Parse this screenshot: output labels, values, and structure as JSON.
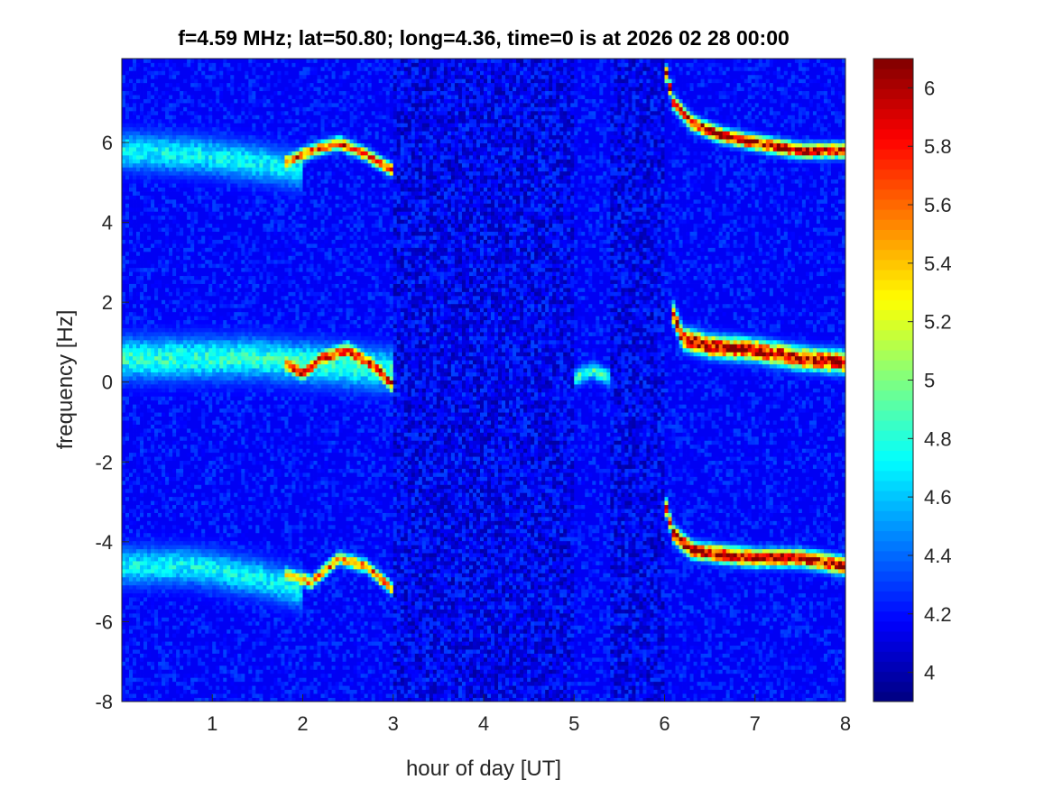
{
  "chart_data": {
    "type": "heatmap",
    "title": "f=4.59 MHz;  lat=50.80; long=4.36, time=0 is at 2026 02 28 00:00",
    "xlabel": "hour of day [UT]",
    "ylabel": "frequency [Hz]",
    "xlim": [
      0,
      8
    ],
    "ylim": [
      -8,
      8.1
    ],
    "xticks": [
      1,
      2,
      3,
      4,
      5,
      6,
      7,
      8
    ],
    "yticks": [
      -8,
      -6,
      -4,
      -2,
      0,
      2,
      4,
      6
    ],
    "colorbar": {
      "clim": [
        3.9,
        6.1
      ],
      "ticks": [
        4,
        4.2,
        4.4,
        4.6,
        4.8,
        5,
        5.2,
        5.4,
        5.6,
        5.8,
        6
      ],
      "colormap": "jet",
      "placement": "right"
    },
    "background_level": 4.15,
    "features": [
      {
        "name": "broad band upper",
        "peak": 4.75,
        "width_hz": 0.45,
        "points": [
          [
            0,
            5.8
          ],
          [
            0.8,
            5.7
          ],
          [
            1.5,
            5.5
          ],
          [
            2.0,
            5.3
          ]
        ]
      },
      {
        "name": "broad band center",
        "peak": 4.85,
        "width_hz": 0.5,
        "points": [
          [
            0,
            0.6
          ],
          [
            0.8,
            0.6
          ],
          [
            1.5,
            0.6
          ],
          [
            2.0,
            0.5
          ],
          [
            3.0,
            0.3
          ]
        ]
      },
      {
        "name": "broad band lower",
        "peak": 4.75,
        "width_hz": 0.45,
        "points": [
          [
            0,
            -4.6
          ],
          [
            0.8,
            -4.6
          ],
          [
            1.5,
            -4.9
          ],
          [
            2.0,
            -5.2
          ]
        ]
      },
      {
        "name": "ridge upper early",
        "peak": 5.8,
        "width_hz": 0.15,
        "points": [
          [
            1.8,
            5.5
          ],
          [
            2.1,
            5.8
          ],
          [
            2.4,
            6.0
          ],
          [
            2.7,
            5.7
          ],
          [
            3.0,
            5.3
          ]
        ]
      },
      {
        "name": "ridge center early",
        "peak": 5.9,
        "width_hz": 0.18,
        "points": [
          [
            1.8,
            0.5
          ],
          [
            2.0,
            0.2
          ],
          [
            2.2,
            0.6
          ],
          [
            2.5,
            0.8
          ],
          [
            2.8,
            0.4
          ],
          [
            3.0,
            -0.1
          ]
        ]
      },
      {
        "name": "ridge lower early",
        "peak": 5.7,
        "width_hz": 0.15,
        "points": [
          [
            1.8,
            -4.8
          ],
          [
            2.1,
            -5.0
          ],
          [
            2.4,
            -4.4
          ],
          [
            2.7,
            -4.6
          ],
          [
            3.0,
            -5.2
          ]
        ]
      },
      {
        "name": "blob",
        "peak": 4.9,
        "width_hz": 0.2,
        "points": [
          [
            5.0,
            0.1
          ],
          [
            5.2,
            0.3
          ],
          [
            5.4,
            0.1
          ]
        ]
      },
      {
        "name": "ridge upper late",
        "peak": 6.1,
        "width_hz": 0.17,
        "points": [
          [
            6.0,
            7.9
          ],
          [
            6.1,
            7.0
          ],
          [
            6.3,
            6.5
          ],
          [
            6.6,
            6.2
          ],
          [
            7.0,
            6.0
          ],
          [
            7.5,
            5.8
          ],
          [
            8.0,
            5.8
          ]
        ]
      },
      {
        "name": "ridge center late",
        "peak": 6.1,
        "width_hz": 0.25,
        "points": [
          [
            6.1,
            1.7
          ],
          [
            6.2,
            1.1
          ],
          [
            6.5,
            0.9
          ],
          [
            7.0,
            0.8
          ],
          [
            7.5,
            0.6
          ],
          [
            8.0,
            0.5
          ]
        ]
      },
      {
        "name": "ridge lower late",
        "peak": 6.1,
        "width_hz": 0.2,
        "points": [
          [
            6.0,
            -3.0
          ],
          [
            6.1,
            -3.8
          ],
          [
            6.3,
            -4.2
          ],
          [
            6.6,
            -4.3
          ],
          [
            7.0,
            -4.4
          ],
          [
            7.5,
            -4.4
          ],
          [
            8.0,
            -4.6
          ]
        ]
      }
    ]
  }
}
